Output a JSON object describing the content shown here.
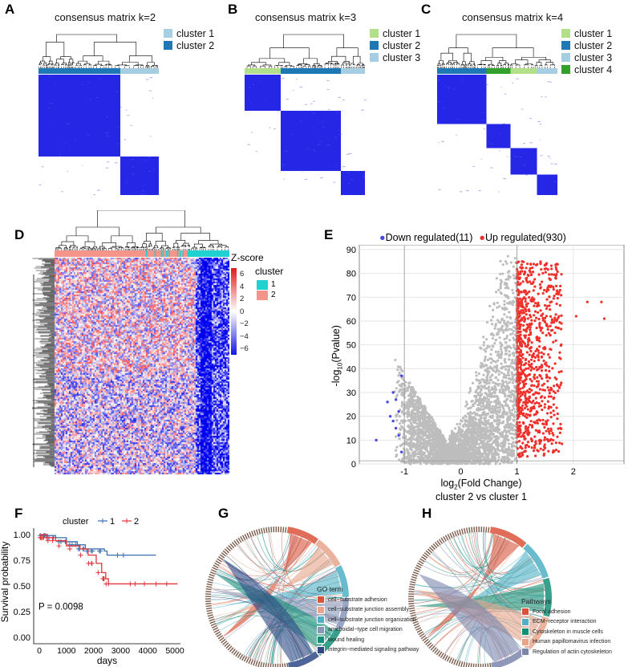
{
  "panels": {
    "A": "A",
    "B": "B",
    "C": "C",
    "D": "D",
    "E": "E",
    "F": "F",
    "G": "G",
    "H": "H"
  },
  "consensus": [
    {
      "title": "consensus matrix k=2",
      "legend": [
        {
          "label": "cluster 1",
          "color": "#a6cee3"
        },
        {
          "label": "cluster 2",
          "color": "#1f78b4"
        }
      ]
    },
    {
      "title": "consensus matrix k=3",
      "legend": [
        {
          "label": "cluster 1",
          "color": "#b2df8a"
        },
        {
          "label": "cluster 2",
          "color": "#1f78b4"
        },
        {
          "label": "cluster 3",
          "color": "#a6cee3"
        }
      ]
    },
    {
      "title": "consensus matrix k=4",
      "legend": [
        {
          "label": "cluster 1",
          "color": "#b2df8a"
        },
        {
          "label": "cluster 2",
          "color": "#1f78b4"
        },
        {
          "label": "cluster 3",
          "color": "#a6cee3"
        },
        {
          "label": "cluster 4",
          "color": "#33a02c"
        }
      ]
    }
  ],
  "heatmap": {
    "zscore_title": "Z-score",
    "zscore_ticks": [
      "6",
      "4",
      "2",
      "0",
      "−2",
      "−4",
      "−6"
    ],
    "cluster_title": "cluster",
    "clusters": [
      {
        "label": "1",
        "color": "#1fd1d1"
      },
      {
        "label": "2",
        "color": "#f4948a"
      }
    ]
  },
  "chart_data": [
    {
      "type": "scatter",
      "name": "volcano",
      "title": "",
      "legend": [
        {
          "label": "Down regulated(11)",
          "color": "#4a4ae0",
          "count": 11
        },
        {
          "label": "Up regulated(930)",
          "color": "#f0302a",
          "count": 930
        }
      ],
      "xlabel_main": "log",
      "xlabel_sub": "2",
      "xlabel_rest": "(Fold Change)",
      "subtitle": "cluster 2 vs cluster 1",
      "ylabel_pre": "-log",
      "ylabel_sub": "10",
      "ylabel_rest": "(Pvalue)",
      "xlim": [
        -1.8,
        2.9
      ],
      "ylim": [
        0,
        92
      ],
      "xticks": [
        "-1",
        "0",
        "1",
        "2"
      ],
      "xtick_vals": [
        -1,
        0,
        1,
        2
      ],
      "yticks": [
        "0",
        "10",
        "20",
        "30",
        "40",
        "50",
        "60",
        "70",
        "80",
        "90"
      ],
      "ytick_vals": [
        0,
        10,
        20,
        30,
        40,
        50,
        60,
        70,
        80,
        90
      ],
      "thresholds": [
        -1,
        1
      ],
      "down_points": [
        [
          -1.5,
          10
        ],
        [
          -1.2,
          30
        ],
        [
          -1.15,
          27
        ],
        [
          -1.1,
          22
        ],
        [
          -1.05,
          37
        ],
        [
          -1.25,
          20
        ],
        [
          -1.3,
          26
        ],
        [
          -1.1,
          12
        ],
        [
          -1.05,
          5
        ],
        [
          -1.2,
          18
        ],
        [
          -1.15,
          15
        ]
      ]
    },
    {
      "type": "line",
      "name": "survival",
      "legend_title": "cluster",
      "series": [
        {
          "name": "1",
          "color": "#3b6fb0",
          "points": [
            [
              0,
              1
            ],
            [
              300,
              0.99
            ],
            [
              600,
              0.97
            ],
            [
              1000,
              0.93
            ],
            [
              1400,
              0.9
            ],
            [
              1700,
              0.86
            ],
            [
              2400,
              0.84
            ],
            [
              2500,
              0.8
            ],
            [
              4300,
              0.8
            ]
          ]
        },
        {
          "name": "2",
          "color": "#e0353a",
          "points": [
            [
              0,
              1
            ],
            [
              300,
              0.97
            ],
            [
              600,
              0.94
            ],
            [
              1000,
              0.89
            ],
            [
              1500,
              0.86
            ],
            [
              1800,
              0.8
            ],
            [
              2100,
              0.72
            ],
            [
              2300,
              0.63
            ],
            [
              2450,
              0.57
            ],
            [
              2550,
              0.52
            ],
            [
              5100,
              0.52
            ]
          ]
        }
      ],
      "xlabel": "days",
      "ylabel": "Survival probability",
      "xlim": [
        0,
        5000
      ],
      "ylim": [
        0,
        1
      ],
      "xticks": [
        "0",
        "1000",
        "2000",
        "3000",
        "4000",
        "5000"
      ],
      "yticks": [
        "0.00",
        "0.25",
        "0.50",
        "0.75",
        "1.00"
      ],
      "annotation": "P = 0.0098"
    }
  ],
  "go": {
    "legend_title": "GO term",
    "items": [
      {
        "label": "cell−substrate adhesion",
        "color": "#d9533b"
      },
      {
        "label": "cell−substrate junction assembly",
        "color": "#e8a58c"
      },
      {
        "label": "cell−substrate junction organization",
        "color": "#4fb0c6"
      },
      {
        "label": "ameboidal−type cell migration",
        "color": "#8896b8"
      },
      {
        "label": "wound healing",
        "color": "#149078"
      },
      {
        "label": "integrin−mediated signaling pathway",
        "color": "#2e4a86"
      }
    ]
  },
  "pathways": {
    "legend_title": "Pathways",
    "items": [
      {
        "label": "Focal adhesion",
        "color": "#d9533b"
      },
      {
        "label": "ECM−receptor interaction",
        "color": "#4fb0c6"
      },
      {
        "label": "Cytoskeleton in muscle cells",
        "color": "#149078"
      },
      {
        "label": "Human papillomavirus infection",
        "color": "#e8a58c"
      },
      {
        "label": "Regulation of actin cytoskeleton",
        "color": "#7b86ad"
      }
    ]
  }
}
